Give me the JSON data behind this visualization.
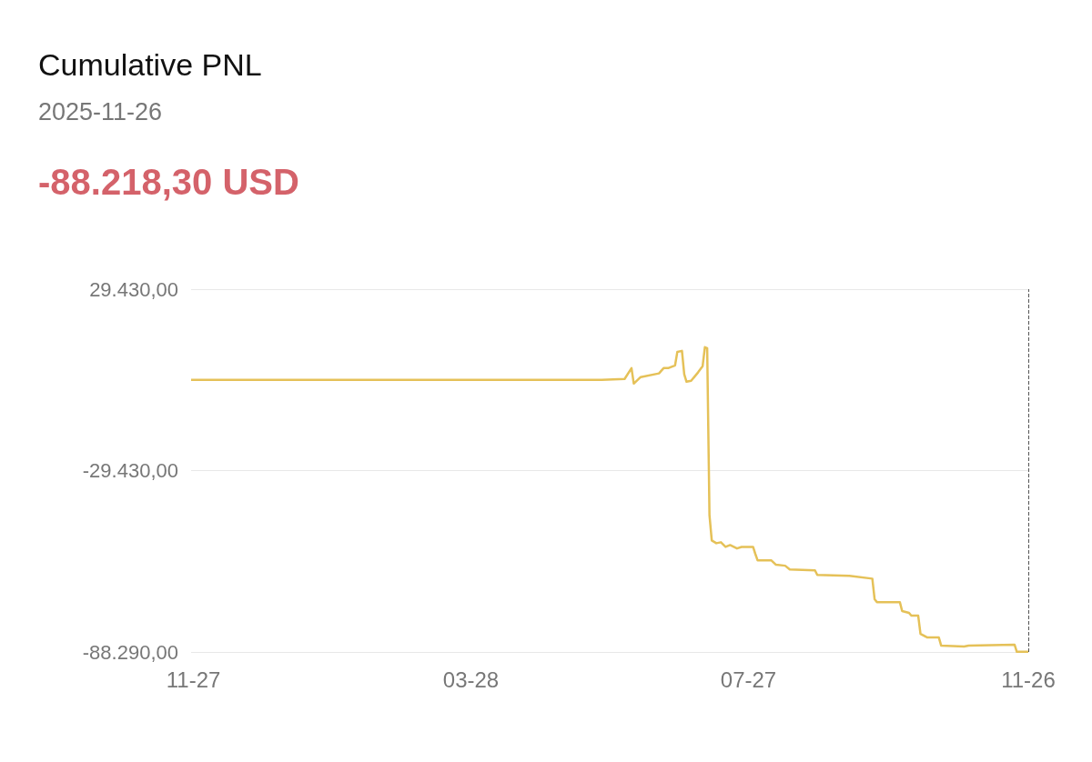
{
  "chart_data": {
    "type": "line",
    "title": "Cumulative PNL",
    "subtitle": "2025-11-26",
    "annotations": [
      "-88.218,30 USD"
    ],
    "x": [
      "2024-11-26",
      "2025-05-24",
      "2025-06-03",
      "2025-06-06",
      "2025-06-07",
      "2025-06-10",
      "2025-06-18",
      "2025-06-20",
      "2025-06-22",
      "2025-06-25",
      "2025-06-26",
      "2025-06-28",
      "2025-06-29",
      "2025-06-30",
      "2025-07-02",
      "2025-07-05",
      "2025-07-07",
      "2025-07-08",
      "2025-07-09",
      "2025-07-10",
      "2025-07-11",
      "2025-07-13",
      "2025-07-15",
      "2025-07-17",
      "2025-07-19",
      "2025-07-22",
      "2025-07-24",
      "2025-07-29",
      "2025-07-30",
      "2025-07-31",
      "2025-08-06",
      "2025-08-08",
      "2025-08-12",
      "2025-08-14",
      "2025-08-25",
      "2025-08-26",
      "2025-09-09",
      "2025-09-19",
      "2025-09-20",
      "2025-09-21",
      "2025-09-24",
      "2025-10-01",
      "2025-10-02",
      "2025-10-05",
      "2025-10-06",
      "2025-10-09",
      "2025-10-10",
      "2025-10-13",
      "2025-10-18",
      "2025-10-19",
      "2025-10-29",
      "2025-10-31",
      "2025-11-20",
      "2025-11-21",
      "2025-11-26"
    ],
    "series": [
      {
        "color": "#e5c158",
        "values": [
          0,
          0,
          300,
          3800,
          -1200,
          900,
          2100,
          3800,
          3800,
          4700,
          9100,
          9400,
          1800,
          -600,
          -300,
          2400,
          4400,
          10600,
          10300,
          -43900,
          -52100,
          -53000,
          -52700,
          -54200,
          -53600,
          -54700,
          -54200,
          -54200,
          -56500,
          -58600,
          -58600,
          -60000,
          -60300,
          -61500,
          -61800,
          -63300,
          -63600,
          -64500,
          -71200,
          -72100,
          -72100,
          -72100,
          -75000,
          -75600,
          -76500,
          -76500,
          -82400,
          -83600,
          -83600,
          -86200,
          -86500,
          -86200,
          -85900,
          -88218.3,
          -88218.3
        ]
      }
    ],
    "xlim": [
      "2024-11-26",
      "2025-11-26"
    ],
    "xticks": [
      {
        "value": "2024-11-27",
        "label": "11-27"
      },
      {
        "value": "2025-03-28",
        "label": "03-28"
      },
      {
        "value": "2025-07-27",
        "label": "07-27"
      },
      {
        "value": "2025-11-26",
        "label": "11-26"
      }
    ],
    "ylim": [
      -88290,
      29430
    ],
    "yticks": [
      {
        "value": -88290,
        "label": "-88.290,00"
      },
      {
        "value": -29430,
        "label": "-29.430,00"
      },
      {
        "value": 29430,
        "label": "29.430,00"
      }
    ],
    "ref_lines": [
      {
        "axis": "x",
        "value": "2025-11-26",
        "color": "#555555",
        "line_style": "dashed"
      }
    ],
    "grid": "y",
    "marker": "none",
    "line_style": "solid"
  }
}
